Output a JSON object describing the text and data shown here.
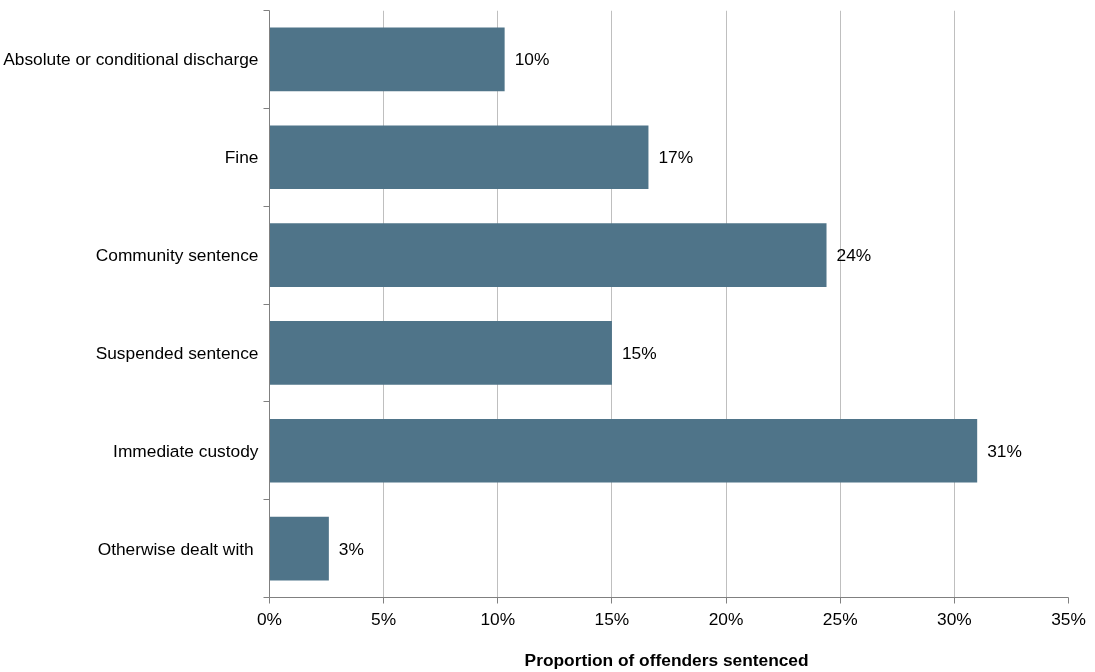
{
  "chart_data": {
    "type": "bar",
    "orientation": "horizontal",
    "xlabel": "Proportion of offenders  sentenced",
    "categories": [
      "Absolute or conditional discharge",
      "Fine",
      "Community sentence",
      "Suspended sentence",
      "Immediate custody",
      "Otherwise  dealt with"
    ],
    "values": [
      10.3,
      16.6,
      24.4,
      15.0,
      31.0,
      2.6
    ],
    "value_labels": [
      "10%",
      "17%",
      "24%",
      "15%",
      "31%",
      "3%"
    ],
    "color": "#4f7489",
    "xlim": [
      0,
      35
    ],
    "xticks": [
      {
        "value": 0,
        "label": "0%"
      },
      {
        "value": 5,
        "label": "5%"
      },
      {
        "value": 10,
        "label": "10%"
      },
      {
        "value": 15,
        "label": "15%"
      },
      {
        "value": 20,
        "label": "20%"
      },
      {
        "value": 25,
        "label": "25%"
      },
      {
        "value": 30,
        "label": "30%"
      },
      {
        "value": 35,
        "label": "35%"
      }
    ],
    "grid": "x"
  }
}
